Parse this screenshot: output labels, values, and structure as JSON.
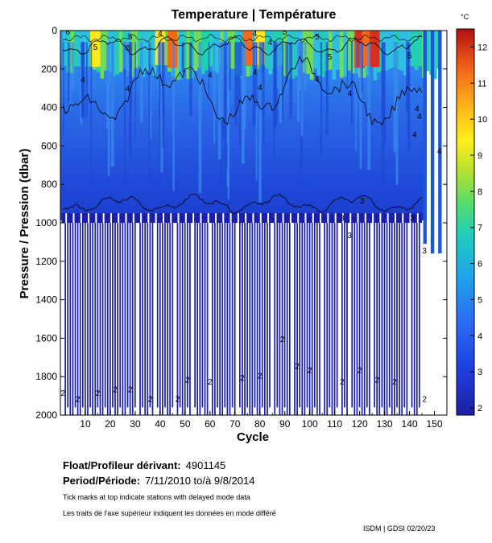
{
  "chart_data": {
    "type": "heatmap",
    "title": "Temperature | Température",
    "xlabel": "Cycle",
    "ylabel": "Pressure / Pression (dbar)",
    "x_ticks": [
      10,
      20,
      30,
      40,
      50,
      60,
      70,
      80,
      90,
      100,
      110,
      120,
      130,
      140,
      150
    ],
    "y_ticks": [
      0,
      200,
      400,
      600,
      800,
      1000,
      1200,
      1400,
      1600,
      1800,
      2000
    ],
    "xlim": [
      0,
      155
    ],
    "ylim": [
      2000,
      0
    ],
    "colorbar": {
      "unit": "°C",
      "ticks": [
        2,
        3,
        4,
        5,
        6,
        7,
        8,
        9,
        10,
        11,
        12
      ],
      "range": [
        1.8,
        12.5
      ]
    },
    "contour_labels": [
      {
        "cycle": 3,
        "pressure": 20,
        "text": "6"
      },
      {
        "cycle": 28,
        "pressure": 45,
        "text": "5"
      },
      {
        "cycle": 27,
        "pressure": 105,
        "text": "6"
      },
      {
        "cycle": 14,
        "pressure": 100,
        "text": "5"
      },
      {
        "cycle": 40,
        "pressure": 30,
        "text": "4"
      },
      {
        "cycle": 78,
        "pressure": 30,
        "text": "4"
      },
      {
        "cycle": 84,
        "pressure": 75,
        "text": "4"
      },
      {
        "cycle": 90,
        "pressure": 20,
        "text": "5"
      },
      {
        "cycle": 140,
        "pressure": 145,
        "text": "5"
      },
      {
        "cycle": 103,
        "pressure": 45,
        "text": "5"
      },
      {
        "cycle": 108,
        "pressure": 150,
        "text": "5"
      },
      {
        "cycle": 9,
        "pressure": 270,
        "text": "4"
      },
      {
        "cycle": 27,
        "pressure": 315,
        "text": "4"
      },
      {
        "cycle": 60,
        "pressure": 245,
        "text": "4"
      },
      {
        "cycle": 80,
        "pressure": 310,
        "text": "4"
      },
      {
        "cycle": 78,
        "pressure": 230,
        "text": "4"
      },
      {
        "cycle": 103,
        "pressure": 265,
        "text": "4"
      },
      {
        "cycle": 116,
        "pressure": 340,
        "text": "4"
      },
      {
        "cycle": 143,
        "pressure": 420,
        "text": "4"
      },
      {
        "cycle": 144,
        "pressure": 460,
        "text": "4"
      },
      {
        "cycle": 142,
        "pressure": 555,
        "text": "4"
      },
      {
        "cycle": 152,
        "pressure": 640,
        "text": "4"
      },
      {
        "cycle": 121,
        "pressure": 900,
        "text": "3"
      },
      {
        "cycle": 113,
        "pressure": 990,
        "text": "3"
      },
      {
        "cycle": 116,
        "pressure": 1080,
        "text": "3"
      },
      {
        "cycle": 146,
        "pressure": 1160,
        "text": "3"
      },
      {
        "cycle": 141,
        "pressure": 990,
        "text": "3"
      },
      {
        "cycle": 1,
        "pressure": 1900,
        "text": "2"
      },
      {
        "cycle": 7,
        "pressure": 1930,
        "text": "2"
      },
      {
        "cycle": 15,
        "pressure": 1900,
        "text": "2"
      },
      {
        "cycle": 22,
        "pressure": 1880,
        "text": "2"
      },
      {
        "cycle": 28,
        "pressure": 1880,
        "text": "2"
      },
      {
        "cycle": 36,
        "pressure": 1930,
        "text": "2"
      },
      {
        "cycle": 47,
        "pressure": 1930,
        "text": "2"
      },
      {
        "cycle": 51,
        "pressure": 1830,
        "text": "2"
      },
      {
        "cycle": 60,
        "pressure": 1840,
        "text": "2"
      },
      {
        "cycle": 73,
        "pressure": 1820,
        "text": "2"
      },
      {
        "cycle": 80,
        "pressure": 1810,
        "text": "2"
      },
      {
        "cycle": 89,
        "pressure": 1620,
        "text": "2"
      },
      {
        "cycle": 95,
        "pressure": 1760,
        "text": "2"
      },
      {
        "cycle": 100,
        "pressure": 1780,
        "text": "2"
      },
      {
        "cycle": 113,
        "pressure": 1840,
        "text": "2"
      },
      {
        "cycle": 120,
        "pressure": 1780,
        "text": "2"
      },
      {
        "cycle": 127,
        "pressure": 1830,
        "text": "2"
      },
      {
        "cycle": 134,
        "pressure": 1840,
        "text": "2"
      },
      {
        "cycle": 146,
        "pressure": 1930,
        "text": "2"
      }
    ],
    "profile_depths": {
      "shallow_cycles_1000dbar": [
        1,
        31,
        38,
        46,
        53,
        60,
        71,
        85,
        93,
        105,
        112,
        116,
        125,
        140,
        145,
        148
      ],
      "deep_profiles_2000dbar": "remaining cycles 1-145"
    }
  },
  "info": {
    "float_label": "Float/Profileur dérivant:",
    "float_value": "4901145",
    "period_label": "Period/Période:",
    "period_value": "7/11/2010  to/à  9/8/2014",
    "note_en": "Tick marks at top indicate stations with delayed mode data",
    "note_fr": "Les traits de l'axe supérieur indiquent les données en mode différé",
    "credit": "ISDM | GDSI  02/20/23"
  },
  "colors": {
    "deep": "#1a1faa",
    "mid": "#1a56e0",
    "upper": "#2f7ff0",
    "warm": "#ffd21a",
    "hot": "#d8301a"
  }
}
